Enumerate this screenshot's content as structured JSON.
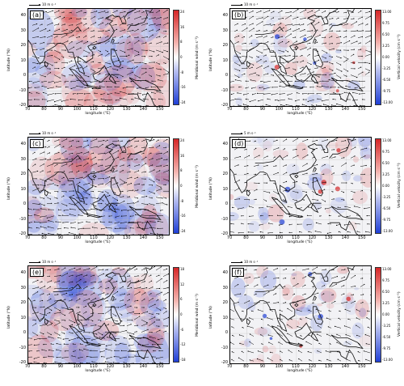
{
  "figure": {
    "panels": [
      {
        "id": "a",
        "label": "(a)",
        "ref": "10 m s⁻¹",
        "cbar_label": "Meridional wind (m s⁻¹)",
        "cbar_ticks": [
          "24",
          "16",
          "8",
          "0",
          "-8",
          "-16",
          "-24"
        ],
        "field": "meridional",
        "scheme": "wind"
      },
      {
        "id": "b",
        "label": "(b)",
        "ref": "10 m s⁻¹",
        "cbar_label": "Vertical velocity (cm s⁻¹)",
        "cbar_ticks": [
          "13.00",
          "9.75",
          "6.50",
          "3.25",
          "0.00",
          "-3.25",
          "-6.50",
          "-9.75",
          "-13.00"
        ],
        "field": "vertical",
        "scheme": "vv"
      },
      {
        "id": "c",
        "label": "(c)",
        "ref": "10 m s⁻¹",
        "cbar_label": "Meridional wind (m s⁻¹)",
        "cbar_ticks": [
          "24",
          "16",
          "8",
          "0",
          "-8",
          "-16",
          "-24"
        ],
        "field": "meridional",
        "scheme": "wind"
      },
      {
        "id": "d",
        "label": "(d)",
        "ref": "5 m s⁻¹",
        "cbar_label": "Vertical velocity (cm s⁻¹)",
        "cbar_ticks": [
          "13.00",
          "9.75",
          "6.50",
          "3.25",
          "0.00",
          "-3.25",
          "-6.50",
          "-9.75",
          "-13.00"
        ],
        "field": "vertical",
        "scheme": "vv"
      },
      {
        "id": "e",
        "label": "(e)",
        "ref": "10 m s⁻¹",
        "cbar_label": "Meridional wind (m s⁻¹)",
        "cbar_ticks": [
          "18",
          "12",
          "6",
          "0",
          "-6",
          "-12",
          "-18"
        ],
        "field": "meridional",
        "scheme": "wind"
      },
      {
        "id": "f",
        "label": "(f)",
        "ref": "10 m s⁻¹",
        "cbar_label": "Vertical velocity (cm s⁻¹)",
        "cbar_ticks": [
          "13.00",
          "9.75",
          "6.50",
          "3.25",
          "0.00",
          "-3.25",
          "-6.50",
          "-9.75",
          "-13.00"
        ],
        "field": "vertical",
        "scheme": "vv"
      }
    ],
    "axes": {
      "ylabel": "latitude (°N)",
      "xlabel": "longitude (°E)",
      "yticks": [
        "40",
        "30",
        "20",
        "10",
        "0",
        "-10",
        "-20"
      ],
      "xticks": [
        "70",
        "80",
        "90",
        "100",
        "110",
        "120",
        "130",
        "140",
        "150"
      ]
    },
    "colors": {
      "positive": "#d62728",
      "negative": "#1f3fd6",
      "neutral": "#f2f2f5"
    }
  }
}
